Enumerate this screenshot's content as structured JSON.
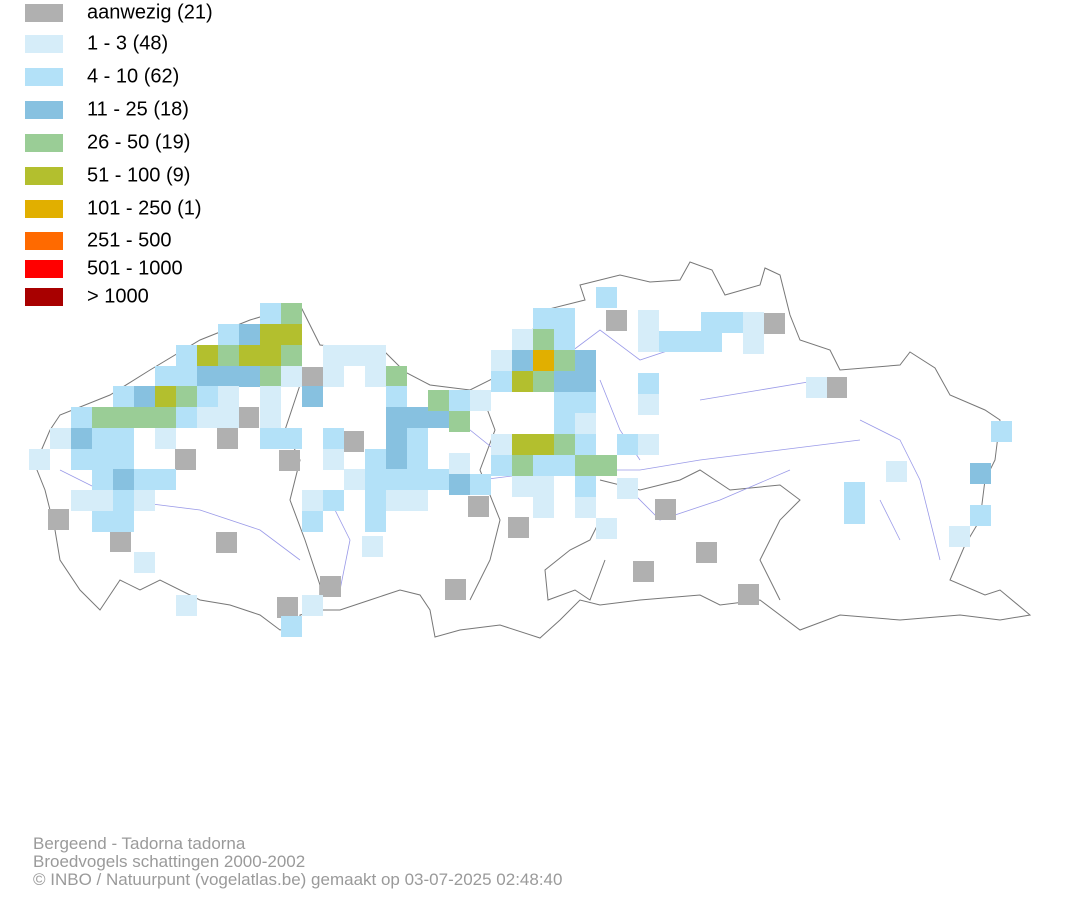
{
  "legend": {
    "items": [
      {
        "label": "aanwezig (21)",
        "color": "#b0b0b0"
      },
      {
        "label": "1 - 3 (48)",
        "color": "#d6edf9"
      },
      {
        "label": "4 - 10 (62)",
        "color": "#b3e1f8"
      },
      {
        "label": "11 - 25 (18)",
        "color": "#87c1e0"
      },
      {
        "label": "26 - 50 (19)",
        "color": "#9acd96"
      },
      {
        "label": "51 - 100 (9)",
        "color": "#b3bf2e"
      },
      {
        "label": "101 - 250 (1)",
        "color": "#e1af00"
      },
      {
        "label": "251 - 500",
        "color": "#ff6a00"
      },
      {
        "label": "501 - 1000",
        "color": "#ff0000"
      },
      {
        "label": "> 1000",
        "color": "#a80000"
      }
    ]
  },
  "footer": {
    "lines": [
      "Bergeend - Tadorna tadorna",
      "Broedvogels schattingen 2000-2002",
      "© INBO / Natuurpunt (vogelatlas.be) gemaakt op 03-07-2025 02:48:40"
    ]
  }
}
